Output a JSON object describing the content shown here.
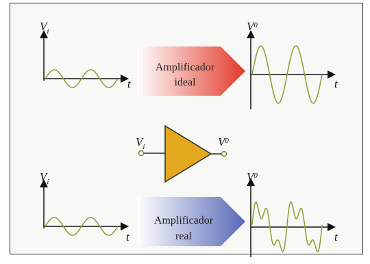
{
  "labels": {
    "vi": "V",
    "vi_sub": "i",
    "v0": "V",
    "v0_sub": "0",
    "t": "t"
  },
  "ideal_block": {
    "line1": "Amplificador",
    "line2": "ideal",
    "color_start": "#ffffff",
    "color_end": "#e23a2a"
  },
  "real_block": {
    "line1": "Amplificador",
    "line2": "real",
    "color_start": "#ffffff",
    "color_end": "#5868b8"
  },
  "amplifier_symbol": {
    "input_label": "V",
    "input_sub": "i",
    "output_label": "V",
    "output_sub": "0",
    "fill": "#e3a81e"
  },
  "colors": {
    "signal": "#8aa43a",
    "axis": "#111111"
  }
}
